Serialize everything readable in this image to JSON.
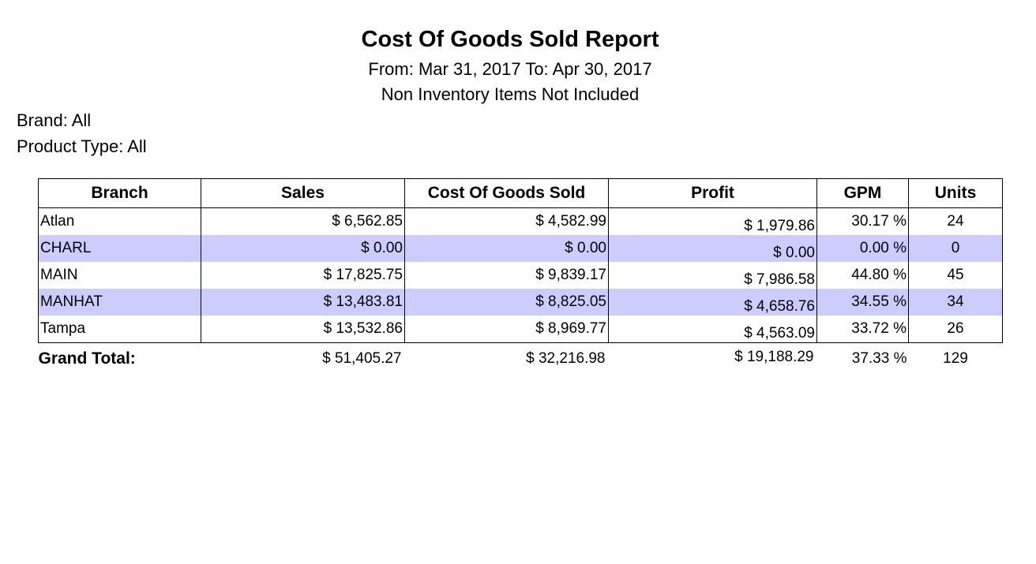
{
  "report": {
    "title": "Cost Of Goods Sold Report",
    "date_range": "From: Mar 31, 2017 To: Apr 30, 2017",
    "note": "Non Inventory Items Not Included"
  },
  "filters": {
    "brand": "Brand: All",
    "product_type": "Product Type: All"
  },
  "table": {
    "columns": [
      "Branch",
      "Sales",
      "Cost Of Goods Sold",
      "Profit",
      "GPM",
      "Units"
    ],
    "rows": [
      {
        "branch": "Atlan",
        "sales": "$ 6,562.85",
        "cogs": "$ 4,582.99",
        "profit": "$ 1,979.86",
        "gpm": "30.17 %",
        "units": "24"
      },
      {
        "branch": "CHARL",
        "sales": "$ 0.00",
        "cogs": "$ 0.00",
        "profit": "$ 0.00",
        "gpm": "0.00 %",
        "units": "0"
      },
      {
        "branch": "MAIN",
        "sales": "$ 17,825.75",
        "cogs": "$ 9,839.17",
        "profit": "$ 7,986.58",
        "gpm": "44.80 %",
        "units": "45"
      },
      {
        "branch": "MANHAT",
        "sales": "$ 13,483.81",
        "cogs": "$ 8,825.05",
        "profit": "$ 4,658.76",
        "gpm": "34.55 %",
        "units": "34"
      },
      {
        "branch": "Tampa",
        "sales": "$ 13,532.86",
        "cogs": "$ 8,969.77",
        "profit": "$ 4,563.09",
        "gpm": "33.72 %",
        "units": "26"
      }
    ],
    "total": {
      "label": "Grand Total:",
      "sales": "$ 51,405.27",
      "cogs": "$ 32,216.98",
      "profit": "$ 19,188.29",
      "gpm": "37.33 %",
      "units": "129"
    }
  },
  "colors": {
    "alt_row": "#ccccff",
    "border": "#000000"
  }
}
